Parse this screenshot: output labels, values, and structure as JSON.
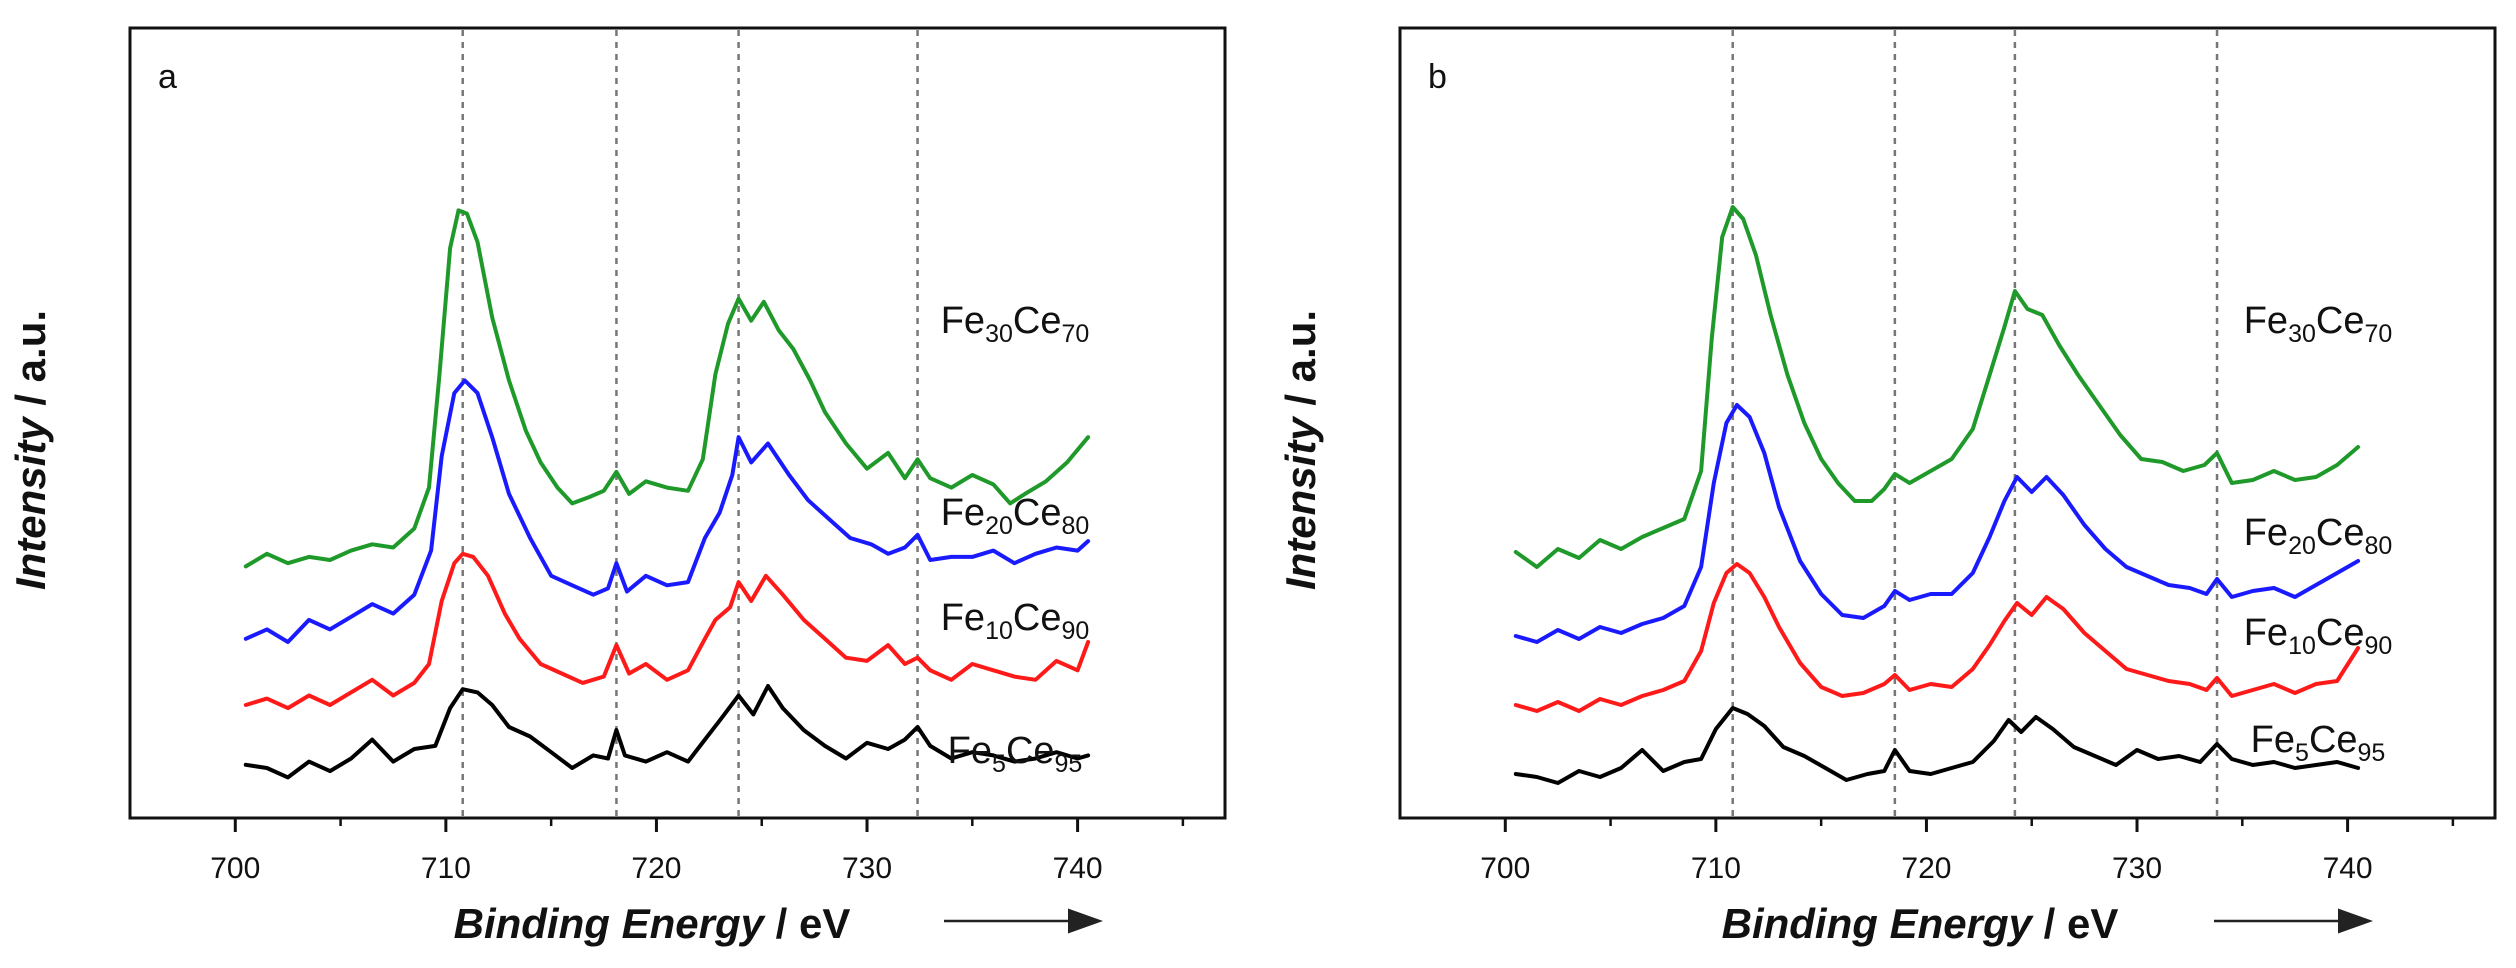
{
  "chart_data": [
    {
      "type": "line",
      "panel_label": "a",
      "xlabel_italic": "Binding Energy",
      "xlabel_unit": " / eV",
      "ylabel_italic": "Intensity",
      "ylabel_unit": " / a.u.",
      "xlim": [
        695,
        747
      ],
      "ylim": [
        0,
        100
      ],
      "xticks": [
        700,
        710,
        720,
        730,
        740
      ],
      "y_ticks_shown": false,
      "reference_lines_x": [
        710.8,
        718.1,
        723.9,
        732.4
      ],
      "reference_line_style": "dotted",
      "arrow_direction": "right",
      "series": [
        {
          "name": "Fe5Ce95",
          "label_main": "Fe",
          "sub1": "5",
          "mid": "Ce",
          "sub2": "95",
          "color": "#000000",
          "x": [
            700.5,
            701.5,
            702.5,
            703.5,
            704.5,
            705.5,
            706.5,
            707.5,
            708.5,
            709.5,
            710.2,
            710.8,
            711.5,
            712.2,
            713.0,
            714.0,
            715.0,
            716.0,
            717.0,
            717.7,
            718.1,
            718.5,
            719.5,
            720.5,
            721.5,
            722.3,
            723.0,
            723.9,
            724.6,
            725.3,
            726.0,
            727.0,
            728.0,
            729.0,
            730.0,
            731.0,
            731.8,
            732.4,
            733.0,
            734.0,
            735.0,
            736.0,
            737.0,
            738.0,
            739.0,
            740.0,
            740.5
          ],
          "y": [
            4.0,
            3.5,
            2.0,
            4.5,
            3.0,
            5.0,
            8.0,
            4.5,
            6.5,
            7.0,
            13.0,
            16.0,
            15.5,
            13.5,
            10.0,
            8.5,
            6.0,
            3.5,
            5.5,
            5.0,
            9.5,
            5.5,
            4.5,
            6.0,
            4.5,
            8.0,
            11.0,
            15.0,
            12.0,
            16.5,
            13.0,
            9.5,
            7.0,
            5.0,
            7.5,
            6.5,
            8.0,
            10.0,
            7.0,
            5.0,
            6.0,
            5.5,
            4.5,
            5.0,
            6.0,
            5.0,
            5.5
          ]
        },
        {
          "name": "Fe10Ce90",
          "label_main": "Fe",
          "sub1": "10",
          "mid": "Ce",
          "sub2": "90",
          "color": "#ff1a1a",
          "x": [
            700.5,
            701.5,
            702.5,
            703.5,
            704.5,
            705.5,
            706.5,
            707.5,
            708.5,
            709.2,
            709.8,
            710.4,
            710.8,
            711.3,
            712.0,
            712.8,
            713.5,
            714.5,
            715.5,
            716.5,
            717.5,
            718.1,
            718.7,
            719.5,
            720.5,
            721.5,
            722.3,
            722.8,
            723.5,
            723.9,
            724.5,
            725.2,
            726.0,
            727.0,
            728.0,
            729.0,
            730.0,
            731.0,
            731.8,
            732.4,
            733.0,
            734.0,
            735.0,
            736.0,
            737.0,
            738.0,
            739.0,
            740.0,
            740.5
          ],
          "y": [
            13.5,
            14.5,
            13.0,
            15.0,
            13.5,
            15.5,
            17.5,
            15.0,
            17.0,
            20.0,
            30.0,
            36.0,
            37.5,
            37.0,
            34.0,
            28.0,
            24.0,
            20.0,
            18.5,
            17.0,
            18.0,
            23.0,
            18.5,
            20.0,
            17.5,
            19.0,
            24.0,
            27.0,
            29.0,
            33.0,
            30.0,
            34.0,
            31.0,
            27.0,
            24.0,
            21.0,
            20.5,
            23.0,
            20.0,
            21.0,
            19.0,
            17.5,
            20.0,
            19.0,
            18.0,
            17.5,
            20.5,
            19.0,
            23.5
          ]
        },
        {
          "name": "Fe20Ce80",
          "label_main": "Fe",
          "sub1": "20",
          "mid": "Ce",
          "sub2": "80",
          "color": "#1a1aff",
          "x": [
            700.5,
            701.5,
            702.5,
            703.5,
            704.5,
            705.5,
            706.5,
            707.5,
            708.5,
            709.3,
            709.8,
            710.4,
            710.9,
            711.5,
            712.2,
            713.0,
            714.0,
            715.0,
            716.0,
            717.0,
            717.7,
            718.1,
            718.6,
            719.5,
            720.5,
            721.5,
            722.3,
            723.0,
            723.6,
            723.9,
            724.5,
            725.3,
            726.3,
            727.2,
            728.2,
            729.2,
            730.2,
            731.0,
            731.8,
            732.4,
            733.0,
            734.0,
            735.0,
            736.0,
            737.0,
            738.0,
            739.0,
            740.0,
            740.5
          ],
          "y": [
            24.0,
            25.5,
            23.5,
            27.0,
            25.5,
            27.5,
            29.5,
            28.0,
            31.0,
            38.0,
            53.0,
            63.0,
            65.0,
            63.0,
            56.0,
            47.0,
            40.0,
            34.0,
            32.5,
            31.0,
            32.0,
            36.0,
            31.5,
            34.0,
            32.5,
            33.0,
            40.0,
            44.0,
            50.0,
            56.0,
            52.0,
            55.0,
            50.0,
            46.0,
            43.0,
            40.0,
            39.0,
            37.5,
            38.5,
            40.5,
            36.5,
            37.0,
            37.0,
            38.0,
            36.0,
            37.5,
            38.5,
            38.0,
            39.5
          ]
        },
        {
          "name": "Fe30Ce70",
          "label_main": "Fe",
          "sub1": "30",
          "mid": "Ce",
          "sub2": "70",
          "color": "#1f9a2a",
          "x": [
            700.5,
            701.5,
            702.5,
            703.5,
            704.5,
            705.5,
            706.5,
            707.5,
            708.5,
            709.2,
            709.7,
            710.2,
            710.6,
            711.0,
            711.5,
            712.2,
            713.0,
            713.8,
            714.5,
            715.3,
            716.0,
            716.8,
            717.5,
            718.1,
            718.7,
            719.5,
            720.5,
            721.5,
            722.2,
            722.8,
            723.4,
            723.9,
            724.5,
            725.1,
            725.8,
            726.5,
            727.3,
            728.0,
            729.0,
            730.0,
            731.0,
            731.8,
            732.4,
            733.0,
            734.0,
            735.0,
            736.0,
            736.8,
            737.5,
            738.5,
            739.5,
            740.5
          ],
          "y": [
            35.5,
            37.5,
            36.0,
            37.0,
            36.5,
            38.0,
            39.0,
            38.5,
            41.5,
            48.0,
            66.0,
            86.0,
            92.0,
            91.5,
            87.0,
            75.0,
            65.0,
            57.0,
            52.0,
            48.0,
            45.5,
            46.5,
            47.5,
            50.5,
            47.0,
            49.0,
            48.0,
            47.5,
            52.5,
            66.0,
            74.0,
            78.0,
            74.5,
            77.5,
            73.0,
            70.0,
            65.0,
            60.0,
            55.0,
            51.0,
            53.5,
            49.5,
            52.5,
            49.5,
            48.0,
            50.0,
            48.5,
            45.5,
            47.0,
            49.0,
            52.0,
            56.0
          ]
        }
      ]
    },
    {
      "type": "line",
      "panel_label": "b",
      "xlabel_italic": "Binding Energy",
      "xlabel_unit": " / eV",
      "ylabel_italic": "Intensity",
      "ylabel_unit": " / a.u.",
      "xlim": [
        695,
        747
      ],
      "ylim": [
        0,
        100
      ],
      "xticks": [
        700,
        710,
        720,
        730,
        740
      ],
      "y_ticks_shown": false,
      "reference_lines_x": [
        710.8,
        718.5,
        724.2,
        733.8
      ],
      "reference_line_style": "dotted",
      "arrow_direction": "right",
      "series": [
        {
          "name": "Fe5Ce95",
          "label_main": "Fe",
          "sub1": "5",
          "mid": "Ce",
          "sub2": "95",
          "color": "#000000",
          "x": [
            700.5,
            701.5,
            702.5,
            703.5,
            704.5,
            705.5,
            706.5,
            707.5,
            708.5,
            709.3,
            710.0,
            710.8,
            711.5,
            712.3,
            713.2,
            714.2,
            715.2,
            716.2,
            717.2,
            718.0,
            718.5,
            719.2,
            720.2,
            721.2,
            722.2,
            723.2,
            723.9,
            724.5,
            725.2,
            726.0,
            727.0,
            728.0,
            729.0,
            730.0,
            731.0,
            732.0,
            733.0,
            733.8,
            734.5,
            735.5,
            736.5,
            737.5,
            738.5,
            739.5,
            740.5
          ],
          "y": [
            3.5,
            3.0,
            2.0,
            4.0,
            3.0,
            4.5,
            7.5,
            4.0,
            5.5,
            6.0,
            11.0,
            14.5,
            13.5,
            11.5,
            8.0,
            6.5,
            4.5,
            2.5,
            3.5,
            4.0,
            7.5,
            4.0,
            3.5,
            4.5,
            5.5,
            9.0,
            12.5,
            10.5,
            13.0,
            11.0,
            8.0,
            6.5,
            5.0,
            7.5,
            6.0,
            6.5,
            5.5,
            8.5,
            6.0,
            5.0,
            5.5,
            4.5,
            5.0,
            5.5,
            4.5
          ]
        },
        {
          "name": "Fe10Ce90",
          "label_main": "Fe",
          "sub1": "10",
          "mid": "Ce",
          "sub2": "90",
          "color": "#ff1a1a",
          "x": [
            700.5,
            701.5,
            702.5,
            703.5,
            704.5,
            705.5,
            706.5,
            707.5,
            708.5,
            709.3,
            709.9,
            710.5,
            711.0,
            711.6,
            712.3,
            713.0,
            714.0,
            715.0,
            716.0,
            717.0,
            718.0,
            718.5,
            719.2,
            720.2,
            721.2,
            722.2,
            723.0,
            723.7,
            724.3,
            725.0,
            725.7,
            726.5,
            727.5,
            728.5,
            729.5,
            730.5,
            731.5,
            732.5,
            733.3,
            733.8,
            734.5,
            735.5,
            736.5,
            737.5,
            738.5,
            739.5,
            740.5
          ],
          "y": [
            15.0,
            14.0,
            15.5,
            14.0,
            16.0,
            15.0,
            16.5,
            17.5,
            19.0,
            24.0,
            32.0,
            37.0,
            38.5,
            37.0,
            33.0,
            28.0,
            22.0,
            18.0,
            16.5,
            17.0,
            18.5,
            20.0,
            17.5,
            18.5,
            18.0,
            21.0,
            25.0,
            29.0,
            32.0,
            30.0,
            33.0,
            31.0,
            27.0,
            24.0,
            21.0,
            20.0,
            19.0,
            18.5,
            17.5,
            19.5,
            16.5,
            17.5,
            18.5,
            17.0,
            18.5,
            19.0,
            24.5
          ]
        },
        {
          "name": "Fe20Ce80",
          "label_main": "Fe",
          "sub1": "20",
          "mid": "Ce",
          "sub2": "80",
          "color": "#1a1aff",
          "x": [
            700.5,
            701.5,
            702.5,
            703.5,
            704.5,
            705.5,
            706.5,
            707.5,
            708.5,
            709.3,
            709.9,
            710.5,
            711.0,
            711.6,
            712.3,
            713.0,
            714.0,
            715.0,
            716.0,
            717.0,
            718.0,
            718.5,
            719.2,
            720.2,
            721.2,
            722.2,
            723.0,
            723.7,
            724.3,
            725.0,
            725.7,
            726.5,
            727.5,
            728.5,
            729.5,
            730.5,
            731.5,
            732.5,
            733.3,
            733.8,
            734.5,
            735.5,
            736.5,
            737.5,
            738.5,
            739.5,
            740.5
          ],
          "y": [
            26.5,
            25.5,
            27.5,
            26.0,
            28.0,
            27.0,
            28.5,
            29.5,
            31.5,
            38.0,
            52.0,
            62.0,
            65.0,
            63.0,
            57.0,
            48.0,
            39.0,
            33.5,
            30.0,
            29.5,
            31.5,
            34.0,
            32.5,
            33.5,
            33.5,
            37.0,
            43.0,
            49.0,
            53.0,
            50.5,
            53.0,
            50.0,
            45.0,
            41.0,
            38.0,
            36.5,
            35.0,
            34.5,
            33.5,
            36.0,
            33.0,
            34.0,
            34.5,
            33.0,
            35.0,
            37.0,
            39.0
          ]
        },
        {
          "name": "Fe30Ce70",
          "label_main": "Fe",
          "sub1": "30",
          "mid": "Ce",
          "sub2": "70",
          "color": "#1f9a2a",
          "x": [
            700.5,
            701.5,
            702.5,
            703.5,
            704.5,
            705.5,
            706.5,
            707.5,
            708.5,
            709.3,
            709.8,
            710.3,
            710.8,
            711.3,
            711.9,
            712.6,
            713.4,
            714.2,
            715.0,
            715.8,
            716.6,
            717.4,
            718.0,
            718.5,
            719.2,
            720.2,
            721.2,
            722.2,
            723.0,
            723.7,
            724.2,
            724.8,
            725.5,
            726.3,
            727.2,
            728.2,
            729.2,
            730.2,
            731.2,
            732.2,
            733.2,
            733.8,
            734.5,
            735.5,
            736.5,
            737.5,
            738.5,
            739.5,
            740.5
          ],
          "y": [
            40.5,
            38.0,
            41.0,
            39.5,
            42.5,
            41.0,
            43.0,
            44.5,
            46.0,
            54.0,
            76.0,
            93.0,
            98.0,
            96.0,
            90.0,
            80.0,
            70.0,
            62.0,
            56.0,
            52.0,
            49.0,
            49.0,
            51.0,
            53.5,
            52.0,
            54.0,
            56.0,
            61.0,
            70.0,
            78.0,
            84.0,
            81.0,
            80.0,
            75.0,
            70.0,
            65.0,
            60.0,
            56.0,
            55.5,
            54.0,
            55.0,
            57.0,
            52.0,
            52.5,
            54.0,
            52.5,
            53.0,
            55.0,
            58.0
          ]
        }
      ]
    }
  ]
}
